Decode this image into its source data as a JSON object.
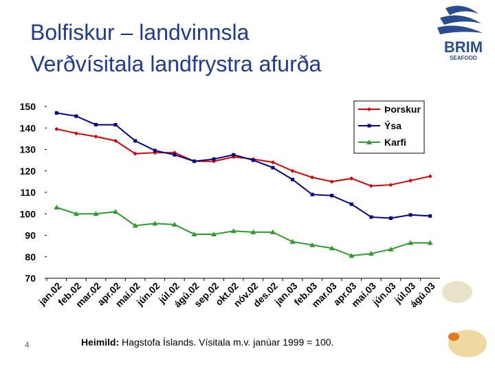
{
  "header": {
    "title_line1": "Bolfiskur – landvinnsla",
    "title_line2": "Verðvísitala landfrystra afurða"
  },
  "logo": {
    "name": "BRIM",
    "sub": "SEAFOOD"
  },
  "footer": {
    "page_number": "4",
    "source_label": "Heimild:",
    "source_text": "Hagstofa Íslands. Vísitala m.v. janúar 1999 = 100."
  },
  "chart_data": {
    "type": "line",
    "categories": [
      "jan.02",
      "feb.02",
      "mar.02",
      "apr.02",
      "maí.02",
      "jún.02",
      "júl.02",
      "ágú.02",
      "sep.02",
      "okt.02",
      "nóv.02",
      "des.02",
      "jan.03",
      "feb.03",
      "mar.03",
      "apr.03",
      "maí.03",
      "jún.03",
      "júl.03",
      "ágú.03"
    ],
    "series": [
      {
        "name": "Þorskur",
        "color": "#d40000",
        "marker": "diamond",
        "values": [
          139.5,
          137.5,
          136,
          134,
          128,
          128.5,
          128.5,
          124.5,
          124.5,
          126.5,
          125.5,
          124,
          120,
          117,
          115,
          116.5,
          113,
          113.5,
          115.5,
          117.5
        ]
      },
      {
        "name": "Ýsa",
        "color": "#000080",
        "marker": "square",
        "values": [
          147,
          145.5,
          141.5,
          141.5,
          134,
          129.5,
          127.5,
          124.5,
          125.5,
          127.5,
          125,
          121.5,
          116,
          109,
          108.5,
          104.5,
          98.5,
          98,
          99.5,
          99
        ]
      },
      {
        "name": "Karfi",
        "color": "#2e9a2e",
        "marker": "triangle",
        "values": [
          103,
          100,
          100,
          101,
          94.5,
          95.5,
          95,
          90.5,
          90.5,
          92,
          91.5,
          91.5,
          87,
          85.5,
          84,
          80.5,
          81.5,
          83.5,
          86.5,
          86.5
        ]
      }
    ],
    "ylim": [
      70,
      150
    ],
    "yticks": [
      70,
      80,
      90,
      100,
      110,
      120,
      130,
      140,
      150
    ],
    "grid": false,
    "legend": "top-right"
  }
}
